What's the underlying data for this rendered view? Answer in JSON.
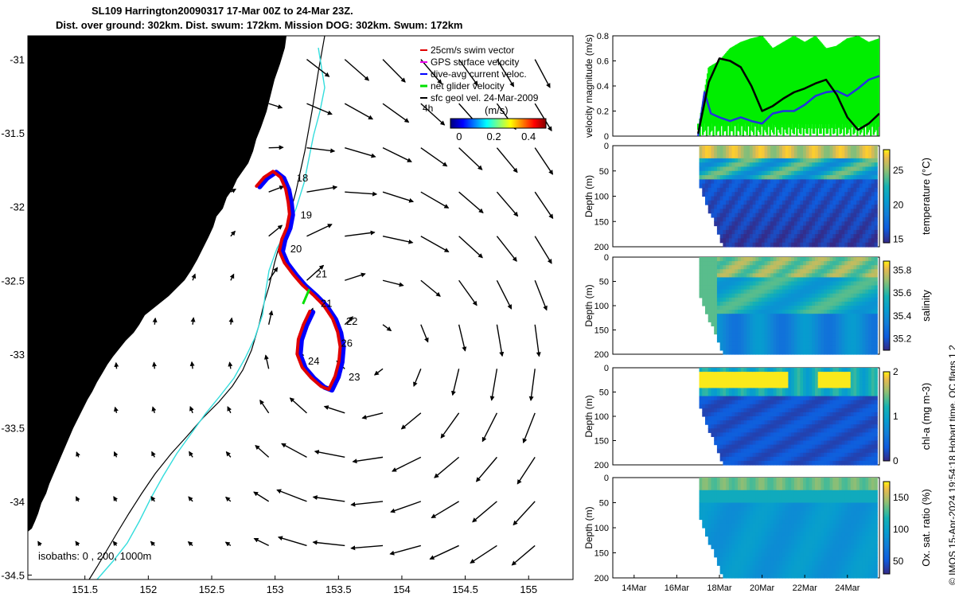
{
  "header": {
    "title_line1": "SL109 Harrington20090317 17-Mar 00Z to 24-Mar 23Z.",
    "title_line2": "Dist. over ground: 302km. Dist. swum: 172km. Mission DOG: 302km. Swum: 172km"
  },
  "copyright": "© IMOS 15-Apr-2024 19:54:18 Hobart time. QC flags 1  2",
  "colors": {
    "land": "#fbcd9c",
    "track_red": "#e00000",
    "track_blue": "#0000ff",
    "net_green": "#00e000",
    "isobath_cyan": "#33dddd",
    "velocity_green": "#00ee00"
  },
  "chart_data": [
    {
      "id": "map",
      "type": "scatter",
      "title": "",
      "xlim": [
        151.05,
        155.35
      ],
      "ylim": [
        -34.53,
        -30.84
      ],
      "x_ticks": [
        "151.5",
        "152",
        "152.5",
        "153",
        "153.5",
        "154",
        "154.5",
        "155"
      ],
      "x_tick_values": [
        151.5,
        152,
        152.5,
        153,
        153.5,
        154,
        154.5,
        155
      ],
      "y_ticks": [
        "-31",
        "-31.5",
        "-32",
        "-32.5",
        "-33",
        "-33.5",
        "-34",
        "-34.5"
      ],
      "y_tick_values": [
        -31,
        -31.5,
        -32,
        -32.5,
        -33,
        -33.5,
        -34,
        -34.5
      ],
      "legend": {
        "placement": "top-right",
        "entries": [
          "25cm/s swim vector",
          "GPS surface velocity",
          "dive-avg current veloc.",
          "net glider velocity",
          "sfc geol vel. 24-Mar-2009"
        ]
      },
      "colorbar": {
        "label": "(m/s)",
        "tick_labels": [
          "0",
          "0.2",
          "0.4"
        ],
        "tick_values": [
          0,
          0.2,
          0.4
        ],
        "range": [
          -0.05,
          0.5
        ]
      },
      "scale_label": "4h",
      "isobath_label": "isobaths: 0 , 200, 1000m",
      "glider_track": [
        [
          152.86,
          -31.86
        ],
        [
          152.92,
          -31.8
        ],
        [
          152.99,
          -31.76
        ],
        [
          153.05,
          -31.8
        ],
        [
          153.09,
          -31.88
        ],
        [
          153.11,
          -31.97
        ],
        [
          153.12,
          -32.05
        ],
        [
          153.1,
          -32.14
        ],
        [
          153.06,
          -32.22
        ],
        [
          153.04,
          -32.3
        ],
        [
          153.08,
          -32.38
        ],
        [
          153.15,
          -32.46
        ],
        [
          153.22,
          -32.53
        ],
        [
          153.31,
          -32.6
        ],
        [
          153.39,
          -32.67
        ],
        [
          153.46,
          -32.76
        ],
        [
          153.5,
          -32.85
        ],
        [
          153.52,
          -32.95
        ],
        [
          153.51,
          -33.05
        ],
        [
          153.48,
          -33.15
        ],
        [
          153.43,
          -33.24
        ],
        [
          153.37,
          -33.22
        ],
        [
          153.29,
          -33.16
        ],
        [
          153.22,
          -33.09
        ],
        [
          153.18,
          -33.0
        ],
        [
          153.19,
          -32.9
        ],
        [
          153.23,
          -32.8
        ],
        [
          153.28,
          -32.71
        ]
      ],
      "day_labels": [
        {
          "text": "18",
          "lon": 153.17,
          "lat": -31.83
        },
        {
          "text": "19",
          "lon": 153.2,
          "lat": -32.08
        },
        {
          "text": "20",
          "lon": 153.12,
          "lat": -32.31
        },
        {
          "text": "21",
          "lon": 153.32,
          "lat": -32.48
        },
        {
          "text": "21",
          "lon": 153.36,
          "lat": -32.68
        },
        {
          "text": "22",
          "lon": 153.56,
          "lat": -32.8
        },
        {
          "text": "26",
          "lon": 153.52,
          "lat": -32.95
        },
        {
          "text": "24",
          "lon": 153.26,
          "lat": -33.07
        },
        {
          "text": "23",
          "lon": 153.58,
          "lat": -33.18
        }
      ],
      "net_velocity_arrow": {
        "lon": 153.22,
        "lat": -32.66,
        "dlon": 0.05,
        "dlat": 0.1
      }
    },
    {
      "id": "velocity",
      "type": "line",
      "ylabel": "velocity magnitude (m/s)",
      "ylim": [
        0,
        0.8
      ],
      "y_tick_labels": [
        "0",
        "0.2",
        "0.4",
        "0.6",
        "0.8"
      ],
      "y_tick_values": [
        0,
        0.2,
        0.4,
        0.6,
        0.8
      ],
      "xlim": [
        13.0,
        25.5
      ],
      "series": [
        {
          "name": "net glider velocity",
          "x": [
            17.0,
            17.5,
            18.0,
            18.5,
            19.0,
            19.5,
            20.0,
            20.5,
            21.0,
            21.5,
            22.0,
            22.5,
            23.0,
            23.5,
            24.0,
            24.5,
            25.0,
            25.5
          ],
          "values": [
            0.05,
            0.55,
            0.6,
            0.7,
            0.75,
            0.78,
            0.8,
            0.7,
            0.75,
            0.8,
            0.75,
            0.8,
            0.7,
            0.72,
            0.78,
            0.8,
            0.75,
            0.78
          ]
        },
        {
          "name": "GPS surface velocity",
          "x": [
            17.0,
            17.5,
            18.0,
            18.5,
            19.0,
            19.5,
            20.0,
            20.5,
            21.0,
            21.5,
            22.0,
            22.5,
            23.0,
            23.5,
            24.0,
            24.5,
            25.0,
            25.5
          ],
          "values": [
            0.02,
            0.43,
            0.62,
            0.6,
            0.55,
            0.4,
            0.2,
            0.24,
            0.3,
            0.35,
            0.38,
            0.42,
            0.45,
            0.33,
            0.15,
            0.05,
            0.1,
            0.18
          ]
        },
        {
          "name": "dive-avg current veloc.",
          "x": [
            17.0,
            17.3,
            17.6,
            18.0,
            18.5,
            19.0,
            19.5,
            20.0,
            20.5,
            21.0,
            21.5,
            22.0,
            22.5,
            23.0,
            23.5,
            24.0,
            24.5,
            25.0,
            25.5
          ],
          "values": [
            0.0,
            0.35,
            0.18,
            0.15,
            0.12,
            0.15,
            0.12,
            0.1,
            0.18,
            0.2,
            0.2,
            0.25,
            0.32,
            0.35,
            0.36,
            0.32,
            0.38,
            0.45,
            0.48
          ]
        }
      ]
    },
    {
      "id": "temperature",
      "type": "heatmap",
      "ylabel": "Depth (m)",
      "cbar_label": "temperature (°C)",
      "ylim": [
        200,
        0
      ],
      "y_tick_labels": [
        "0",
        "50",
        "100",
        "150",
        "200"
      ],
      "y_tick_values": [
        0,
        50,
        100,
        150,
        200
      ],
      "clim": [
        14.5,
        28
      ],
      "cbar_ticks": [
        "15",
        "20",
        "25"
      ],
      "cbar_tick_values": [
        15,
        20,
        25
      ],
      "colormap": "parula"
    },
    {
      "id": "salinity",
      "type": "heatmap",
      "ylabel": "Depth (m)",
      "cbar_label": "salinity",
      "ylim": [
        200,
        0
      ],
      "y_tick_labels": [
        "0",
        "50",
        "100",
        "150",
        "200"
      ],
      "y_tick_values": [
        0,
        50,
        100,
        150,
        200
      ],
      "clim": [
        35.1,
        35.88
      ],
      "cbar_ticks": [
        "35.2",
        "35.4",
        "35.6",
        "35.8"
      ],
      "cbar_tick_values": [
        35.2,
        35.4,
        35.6,
        35.8
      ],
      "colormap": "parula"
    },
    {
      "id": "chla",
      "type": "heatmap",
      "ylabel": "Depth (m)",
      "cbar_label": "chl-a (mg m-3)",
      "ylim": [
        200,
        0
      ],
      "y_tick_labels": [
        "0",
        "50",
        "100",
        "150",
        "200"
      ],
      "y_tick_values": [
        0,
        50,
        100,
        150,
        200
      ],
      "clim": [
        0,
        2
      ],
      "cbar_ticks": [
        "0",
        "1",
        "2"
      ],
      "cbar_tick_values": [
        0,
        1,
        2
      ],
      "colormap": "parula"
    },
    {
      "id": "oxygen",
      "type": "heatmap",
      "ylabel": "Depth (m)",
      "cbar_label": "Ox. sat. ratio (%)",
      "ylim": [
        200,
        0
      ],
      "y_tick_labels": [
        "0",
        "50",
        "100",
        "150",
        "200"
      ],
      "y_tick_values": [
        0,
        50,
        100,
        150,
        200
      ],
      "clim": [
        30,
        175
      ],
      "cbar_ticks": [
        "50",
        "100",
        "150"
      ],
      "cbar_tick_values": [
        50,
        100,
        150
      ],
      "colormap": "parula",
      "x_tick_labels": [
        "14Mar",
        "16Mar",
        "18Mar",
        "20Mar",
        "22Mar",
        "24Mar"
      ],
      "x_tick_values": [
        14,
        16,
        18,
        20,
        22,
        24
      ],
      "xlim": [
        13.0,
        25.5
      ]
    }
  ]
}
